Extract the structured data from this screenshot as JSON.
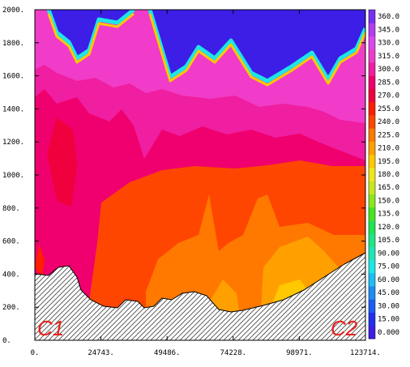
{
  "chart_data": {
    "type": "heatmap",
    "title": "",
    "xlabel": "",
    "ylabel": "",
    "xlim": [
      0,
      123714
    ],
    "ylim": [
      0,
      2000
    ],
    "x_ticks": [
      "0.",
      "24743.",
      "49486.",
      "74228.",
      "98971.",
      "123714."
    ],
    "y_ticks": [
      "0.",
      "200.",
      "400.",
      "600.",
      "800.",
      "1000.",
      "1200.",
      "1400.",
      "1600.",
      "1800.",
      "2000."
    ],
    "colorbar_levels": [
      "0.000",
      "15.00",
      "30.00",
      "45.00",
      "60.00",
      "75.00",
      "90.00",
      "105.0",
      "120.0",
      "135.0",
      "150.0",
      "165.0",
      "180.0",
      "195.0",
      "210.0",
      "225.0",
      "240.0",
      "255.0",
      "270.0",
      "285.0",
      "300.0",
      "315.0",
      "330.0",
      "345.0",
      "360.0"
    ],
    "colorbar_colors": [
      "#3c1ee6",
      "#2030ee",
      "#1e5cf2",
      "#1e8cf4",
      "#1ebef4",
      "#1ee6e6",
      "#1ee6b4",
      "#1ee682",
      "#1ee650",
      "#46e61e",
      "#8ce61e",
      "#c8e61e",
      "#f0e61e",
      "#ffc800",
      "#ffa000",
      "#ff7800",
      "#ff4600",
      "#ff1e00",
      "#f0003c",
      "#f0006e",
      "#f01ea0",
      "#f03cc8",
      "#dc46ec",
      "#b43cf0",
      "#7830f0"
    ],
    "annotations": [
      "C1",
      "C2"
    ]
  }
}
